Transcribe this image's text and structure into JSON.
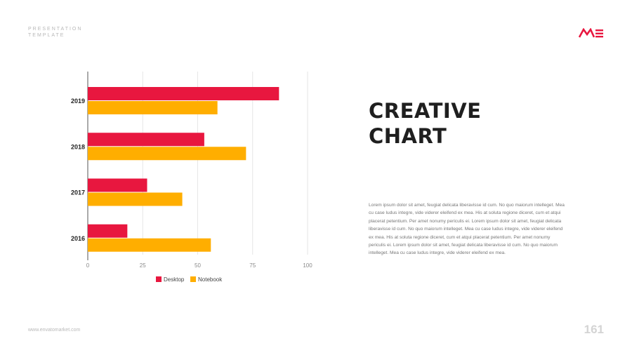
{
  "header": {
    "brand_line1": "PRESENTATION",
    "brand_line2": "TEMPLATE",
    "logo_icon": "me-logo-icon",
    "accent_color": "#e8173f"
  },
  "main": {
    "title_line1": "CREATIVE",
    "title_line2": "CHART",
    "body": "Lorem ipsum dolor sit amet, feugiat delicata liberavisse id cum. No quo maiorum intelleget. Mea cu case ludus integre, vide viderer eleifend ex mea. His at soluta regione diceret, cum et atqui placerat petentium. Per amet nonumy periculis ei. Lorem ipsum dolor sit amet, feugiat delicata liberavisse id cum. No quo maiorum intelleget. Mea cu case ludus integre, vide viderer eleifend ex mea. His at soluta regione diceret, cum et atqui placerat petentium. Per amet nonumy periculis ei. Lorem ipsum dolor sit amet, feugiat delicata liberavisse id cum. No quo maiorum intelleget. Mea cu case ludus integre, vide viderer eleifend ex mea."
  },
  "footer": {
    "url": "www.envatomarket.com",
    "page_number": "161"
  },
  "chart_data": {
    "type": "bar",
    "orientation": "horizontal",
    "categories": [
      "2019",
      "2018",
      "2017",
      "2016"
    ],
    "series": [
      {
        "name": "Desktop",
        "color": "#e8173f",
        "values": [
          87,
          53,
          27,
          18
        ]
      },
      {
        "name": "Notebook",
        "color": "#ffae00",
        "values": [
          59,
          72,
          43,
          56
        ]
      }
    ],
    "x_ticks": [
      "0",
      "25",
      "50",
      "75",
      "100"
    ],
    "xlim": [
      0,
      100
    ],
    "grid": true,
    "legend_position": "bottom"
  }
}
